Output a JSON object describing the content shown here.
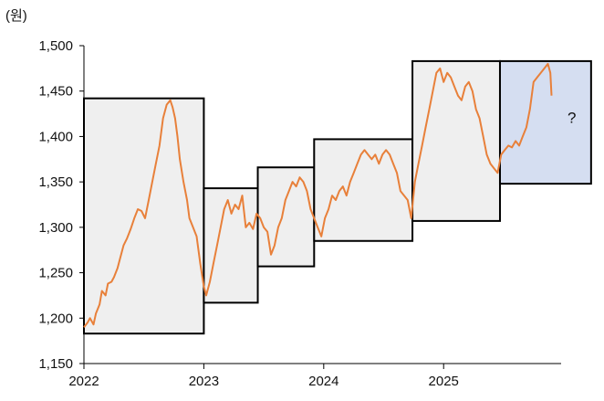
{
  "chart_data": {
    "type": "line",
    "unit_label": "(원)",
    "ylim": [
      1150,
      1500
    ],
    "y_ticks": [
      "1,150",
      "1,200",
      "1,250",
      "1,300",
      "1,350",
      "1,400",
      "1,450",
      "1,500"
    ],
    "y_tick_values": [
      1150,
      1200,
      1250,
      1300,
      1350,
      1400,
      1450,
      1500
    ],
    "x_ticks": [
      "2022",
      "2023",
      "2024",
      "2025"
    ],
    "x_tick_values": [
      2022.0,
      2023.0,
      2024.0,
      2025.0
    ],
    "xlim": [
      2022.0,
      2025.98
    ],
    "grid": false,
    "series": [
      {
        "color": "#E8803A",
        "x": [
          2022.0,
          2022.03,
          2022.05,
          2022.08,
          2022.1,
          2022.13,
          2022.15,
          2022.18,
          2022.2,
          2022.23,
          2022.25,
          2022.28,
          2022.3,
          2022.33,
          2022.36,
          2022.39,
          2022.42,
          2022.45,
          2022.48,
          2022.51,
          2022.54,
          2022.57,
          2022.6,
          2022.63,
          2022.66,
          2022.69,
          2022.72,
          2022.74,
          2022.76,
          2022.78,
          2022.8,
          2022.83,
          2022.86,
          2022.88,
          2022.91,
          2022.94,
          2022.97,
          2023.0,
          2023.02,
          2023.05,
          2023.08,
          2023.11,
          2023.14,
          2023.17,
          2023.2,
          2023.23,
          2023.26,
          2023.29,
          2023.32,
          2023.35,
          2023.38,
          2023.41,
          2023.44,
          2023.47,
          2023.5,
          2023.53,
          2023.56,
          2023.59,
          2023.62,
          2023.65,
          2023.68,
          2023.71,
          2023.74,
          2023.77,
          2023.8,
          2023.83,
          2023.86,
          2023.89,
          2023.92,
          2023.95,
          2023.98,
          2024.01,
          2024.04,
          2024.07,
          2024.1,
          2024.13,
          2024.16,
          2024.19,
          2024.22,
          2024.25,
          2024.28,
          2024.31,
          2024.34,
          2024.37,
          2024.4,
          2024.43,
          2024.46,
          2024.49,
          2024.52,
          2024.55,
          2024.58,
          2024.61,
          2024.64,
          2024.67,
          2024.7,
          2024.73,
          2024.76,
          2024.79,
          2024.82,
          2024.85,
          2024.88,
          2024.91,
          2024.94,
          2024.97,
          2025.0,
          2025.03,
          2025.06,
          2025.09,
          2025.12,
          2025.15,
          2025.18,
          2025.21,
          2025.24,
          2025.27,
          2025.3,
          2025.33,
          2025.36,
          2025.39,
          2025.42,
          2025.45,
          2025.48,
          2025.51,
          2025.54,
          2025.57,
          2025.6,
          2025.63,
          2025.66,
          2025.69,
          2025.72,
          2025.75,
          2025.78,
          2025.81,
          2025.84,
          2025.87,
          2025.89,
          2025.9
        ],
        "y": [
          1190,
          1195,
          1200,
          1193,
          1205,
          1215,
          1230,
          1225,
          1238,
          1240,
          1245,
          1255,
          1265,
          1280,
          1288,
          1298,
          1310,
          1320,
          1318,
          1310,
          1330,
          1350,
          1370,
          1390,
          1420,
          1435,
          1440,
          1432,
          1420,
          1400,
          1375,
          1350,
          1330,
          1310,
          1300,
          1290,
          1260,
          1235,
          1225,
          1240,
          1260,
          1280,
          1300,
          1320,
          1330,
          1315,
          1325,
          1320,
          1335,
          1300,
          1305,
          1298,
          1315,
          1310,
          1300,
          1295,
          1270,
          1280,
          1300,
          1310,
          1330,
          1340,
          1350,
          1345,
          1355,
          1350,
          1340,
          1320,
          1310,
          1300,
          1290,
          1310,
          1320,
          1335,
          1330,
          1340,
          1345,
          1335,
          1350,
          1360,
          1370,
          1380,
          1385,
          1380,
          1375,
          1380,
          1370,
          1380,
          1385,
          1380,
          1370,
          1360,
          1340,
          1335,
          1330,
          1310,
          1350,
          1370,
          1390,
          1410,
          1430,
          1450,
          1470,
          1475,
          1460,
          1470,
          1465,
          1455,
          1445,
          1440,
          1455,
          1460,
          1450,
          1430,
          1420,
          1400,
          1380,
          1370,
          1365,
          1360,
          1380,
          1385,
          1390,
          1388,
          1395,
          1390,
          1400,
          1410,
          1430,
          1460,
          1465,
          1470,
          1475,
          1480,
          1470,
          1445
        ]
      }
    ],
    "period_boxes": [
      {
        "x0": 2022.0,
        "x1": 2023.0,
        "y0": 1183,
        "y1": 1442
      },
      {
        "x0": 2023.0,
        "x1": 2023.45,
        "y0": 1217,
        "y1": 1343
      },
      {
        "x0": 2023.45,
        "x1": 2023.92,
        "y0": 1257,
        "y1": 1366
      },
      {
        "x0": 2023.92,
        "x1": 2024.74,
        "y0": 1285,
        "y1": 1397
      },
      {
        "x0": 2024.74,
        "x1": 2025.47,
        "y0": 1307,
        "y1": 1483
      },
      {
        "x0": 2025.47,
        "x1": 2026.23,
        "y0": 1348,
        "y1": 1483
      }
    ],
    "colors": {
      "box_fill": "#EFEFEF",
      "highlight_fill": "#D5DEF1",
      "box_stroke": "#000000",
      "line": "#E8803A"
    },
    "annotation": "?"
  }
}
